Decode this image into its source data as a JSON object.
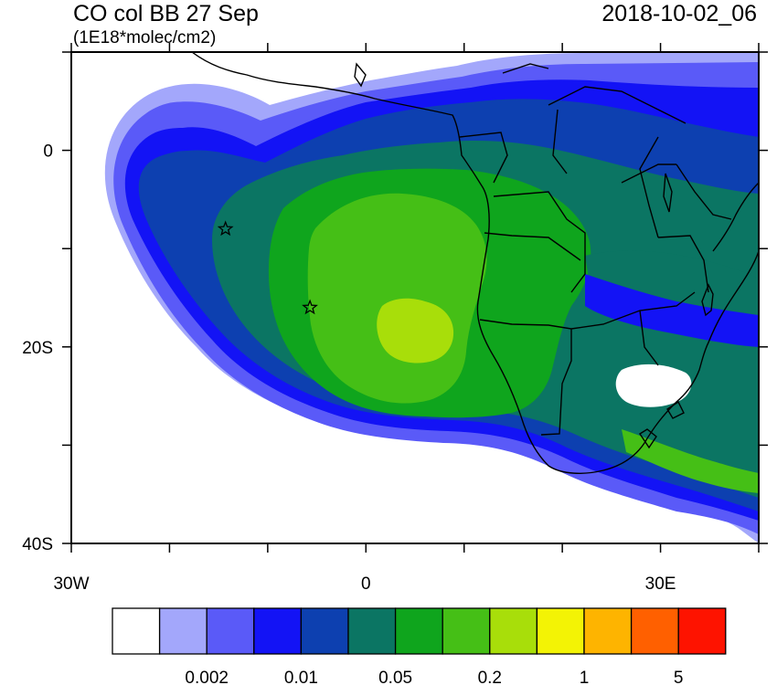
{
  "header": {
    "title": "CO col BB 27 Sep",
    "units": "(1E18*molec/cm2)",
    "datetime": "2018-10-02_06"
  },
  "map": {
    "type": "contour-map",
    "lon_range": [
      -30,
      40
    ],
    "lat_range": [
      -40,
      10
    ],
    "y_tick_labels": [
      {
        "lat": 0,
        "label": "0"
      },
      {
        "lat": -20,
        "label": "20S"
      },
      {
        "lat": -40,
        "label": "40S"
      }
    ],
    "x_tick_labels": [
      {
        "lon": -30,
        "label": "30W"
      },
      {
        "lon": 0,
        "label": "0"
      },
      {
        "lon": 30,
        "label": "30E"
      }
    ],
    "markers": [
      {
        "name": "star-marker",
        "lon": -14.3,
        "lat": -8.0
      },
      {
        "name": "star-marker",
        "lon": -5.7,
        "lat": -16.0
      }
    ]
  },
  "colorbar": {
    "colors": [
      "#ffffff",
      "#a3a7fb",
      "#5a5af8",
      "#1313f5",
      "#0d40b0",
      "#0b7563",
      "#0fa51d",
      "#45bf16",
      "#a8de0a",
      "#f3f305",
      "#feb400",
      "#ff6000",
      "#fe1300"
    ],
    "labels": [
      {
        "index": 2,
        "text": "0.002"
      },
      {
        "index": 4,
        "text": "0.01"
      },
      {
        "index": 6,
        "text": "0.05"
      },
      {
        "index": 8,
        "text": "0.2"
      },
      {
        "index": 10,
        "text": "1"
      },
      {
        "index": 12,
        "text": "5"
      }
    ]
  }
}
